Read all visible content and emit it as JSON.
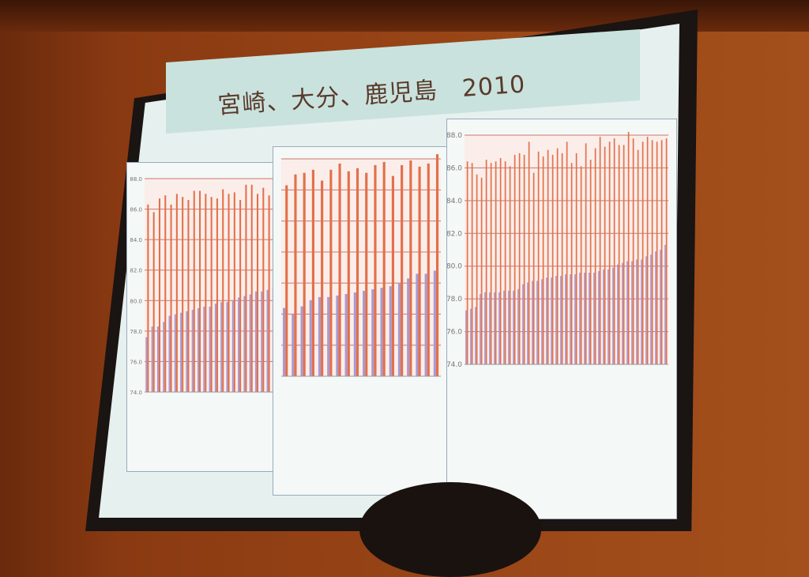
{
  "slide": {
    "title": "宮崎、大分、鹿児島　2010"
  },
  "chart_data": [
    {
      "type": "bar",
      "ylim": [
        74.0,
        88.0
      ],
      "yticks": [
        "74.0",
        "76.0",
        "78.0",
        "80.0",
        "82.0",
        "84.0",
        "86.0",
        "88.0"
      ],
      "grid": true,
      "colors": {
        "male": "#a99ad0",
        "female": "#e2704a"
      },
      "series": [
        {
          "values": [
            77.6,
            78.3,
            78.3,
            78.6,
            79.0,
            79.1,
            79.2,
            79.3,
            79.4,
            79.5,
            79.6,
            79.6,
            79.8,
            79.9,
            79.9,
            80.0,
            80.2,
            80.3,
            80.4,
            80.6,
            80.6,
            80.7,
            80.8,
            81.0,
            81.2,
            81.3,
            81.8
          ]
        },
        {
          "values": [
            86.3,
            85.8,
            86.7,
            86.9,
            86.3,
            87.0,
            86.8,
            86.6,
            87.2,
            87.2,
            87.0,
            86.8,
            86.7,
            87.3,
            87.0,
            87.1,
            86.6,
            87.6,
            87.6,
            87.0,
            87.4,
            86.9,
            87.2,
            87.2,
            87.6,
            88.0,
            88.2
          ]
        }
      ]
    },
    {
      "type": "bar",
      "ylim": [
        74.0,
        88.0
      ],
      "yticks": [],
      "grid": true,
      "colors": {
        "male": "#a99ad0",
        "female": "#e2704a"
      },
      "series": [
        {
          "values": [
            78.4,
            78.0,
            78.5,
            78.9,
            79.1,
            79.1,
            79.2,
            79.3,
            79.4,
            79.5,
            79.6,
            79.7,
            79.8,
            80.0,
            80.3,
            80.6,
            80.6,
            80.8
          ]
        },
        {
          "values": [
            86.3,
            87.0,
            87.1,
            87.3,
            86.6,
            87.3,
            87.7,
            87.2,
            87.4,
            87.1,
            87.6,
            87.8,
            86.9,
            87.6,
            87.9,
            87.5,
            87.7,
            88.3
          ]
        }
      ]
    },
    {
      "type": "bar",
      "ylim": [
        74.0,
        88.0
      ],
      "yticks": [
        "74.0",
        "76.0",
        "78.0",
        "80.0",
        "82.0",
        "84.0",
        "86.0",
        "88.0"
      ],
      "grid": true,
      "colors": {
        "male": "#a99ad0",
        "female": "#e2704a"
      },
      "series": [
        {
          "values": [
            77.3,
            77.4,
            77.5,
            78.3,
            78.4,
            78.4,
            78.4,
            78.4,
            78.5,
            78.5,
            78.5,
            78.6,
            78.9,
            79.0,
            79.1,
            79.1,
            79.2,
            79.3,
            79.3,
            79.4,
            79.4,
            79.5,
            79.5,
            79.5,
            79.6,
            79.6,
            79.6,
            79.6,
            79.7,
            79.8,
            79.8,
            79.9,
            80.1,
            80.2,
            80.3,
            80.3,
            80.4,
            80.4,
            80.6,
            80.7,
            80.9,
            81.0,
            81.3
          ]
        },
        {
          "values": [
            86.4,
            86.3,
            85.6,
            85.4,
            86.5,
            86.3,
            86.4,
            86.6,
            86.4,
            86.1,
            86.8,
            86.9,
            86.8,
            87.6,
            85.7,
            87.0,
            86.7,
            87.1,
            86.8,
            87.2,
            86.9,
            87.6,
            86.3,
            86.9,
            86.1,
            87.5,
            86.5,
            87.2,
            87.9,
            87.3,
            87.6,
            87.8,
            87.4,
            87.4,
            88.2,
            87.8,
            87.1,
            87.6,
            87.9,
            87.7,
            87.6,
            87.7,
            87.8
          ]
        }
      ]
    }
  ]
}
